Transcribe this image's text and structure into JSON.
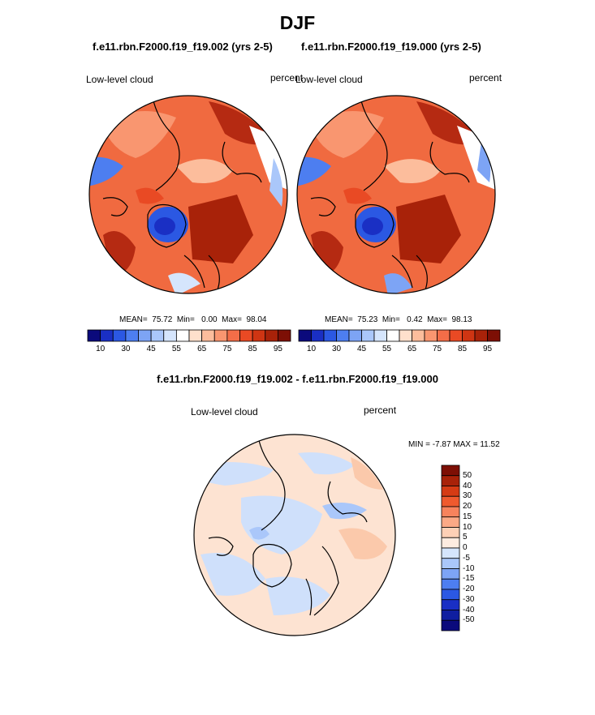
{
  "season_title": "DJF",
  "colors": {
    "ocean_warm": "#f06a40",
    "ocean_deep": "#b52a12",
    "ice_blue": "#3060d8",
    "diff_bg": "#fde3d2",
    "diff_blue": "#cfe0fb"
  },
  "panels": [
    {
      "case_title": "f.e11.rbn.F2000.f19_f19.002 (yrs 2-5)",
      "left_label": "Low-level cloud",
      "right_label": "percent",
      "stats": "MEAN=  75.72  Min=   0.00  Max=  98.04"
    },
    {
      "case_title": "f.e11.rbn.F2000.f19_f19.000 (yrs 2-5)",
      "left_label": "Low-level cloud",
      "right_label": "percent",
      "stats": "MEAN=  75.23  Min=   0.42  Max=  98.13"
    }
  ],
  "abs_colorbar": {
    "colors": [
      "#0b0a7c",
      "#1a2fc4",
      "#2b58e3",
      "#4d7ef0",
      "#7da4f5",
      "#aac7fa",
      "#d5e5fc",
      "#ffffff",
      "#fee0cc",
      "#fcbd9c",
      "#f99670",
      "#f36d48",
      "#e94a24",
      "#cf3513",
      "#a82209",
      "#7d0f05"
    ],
    "tick_labels": [
      "10",
      "30",
      "45",
      "55",
      "65",
      "75",
      "85",
      "95"
    ]
  },
  "diff_panel": {
    "title": "f.e11.rbn.F2000.f19_f19.002 - f.e11.rbn.F2000.f19_f19.000",
    "left_label": "Low-level cloud",
    "right_label": "percent",
    "min_max": "MIN = -7.87 MAX = 11.52"
  },
  "diff_colorbar": {
    "colors": [
      "#7d0f05",
      "#a82209",
      "#d53b14",
      "#ef5a2e",
      "#f7835d",
      "#fba986",
      "#fdd0b6",
      "#fdebe0",
      "#d5e5fc",
      "#aac7fa",
      "#7da4f5",
      "#4d7ef0",
      "#2b58e3",
      "#1a2fc4",
      "#0f1ea0",
      "#0b0a7c"
    ],
    "tick_labels": [
      "50",
      "40",
      "30",
      "20",
      "15",
      "10",
      "5",
      "0",
      "-5",
      "-10",
      "-15",
      "-20",
      "-30",
      "-40",
      "-50"
    ]
  },
  "chart_data": [
    {
      "type": "heatmap",
      "title": "f.e11.rbn.F2000.f19_f19.002 (yrs 2-5)",
      "variable": "Low-level cloud",
      "units": "percent",
      "stats": {
        "mean": 75.72,
        "min": 0.0,
        "max": 98.04
      },
      "colorbar_levels": [
        10,
        30,
        45,
        55,
        65,
        75,
        85,
        95
      ],
      "projection": "polar stereographic"
    },
    {
      "type": "heatmap",
      "title": "f.e11.rbn.F2000.f19_f19.000 (yrs 2-5)",
      "variable": "Low-level cloud",
      "units": "percent",
      "stats": {
        "mean": 75.23,
        "min": 0.42,
        "max": 98.13
      },
      "colorbar_levels": [
        10,
        30,
        45,
        55,
        65,
        75,
        85,
        95
      ],
      "projection": "polar stereographic"
    },
    {
      "type": "heatmap",
      "title": "f.e11.rbn.F2000.f19_f19.002 - f.e11.rbn.F2000.f19_f19.000",
      "variable": "Low-level cloud",
      "units": "percent",
      "stats": {
        "min": -7.87,
        "max": 11.52
      },
      "colorbar_levels": [
        50,
        40,
        30,
        20,
        15,
        10,
        5,
        0,
        -5,
        -10,
        -15,
        -20,
        -30,
        -40,
        -50
      ],
      "projection": "polar stereographic"
    }
  ]
}
